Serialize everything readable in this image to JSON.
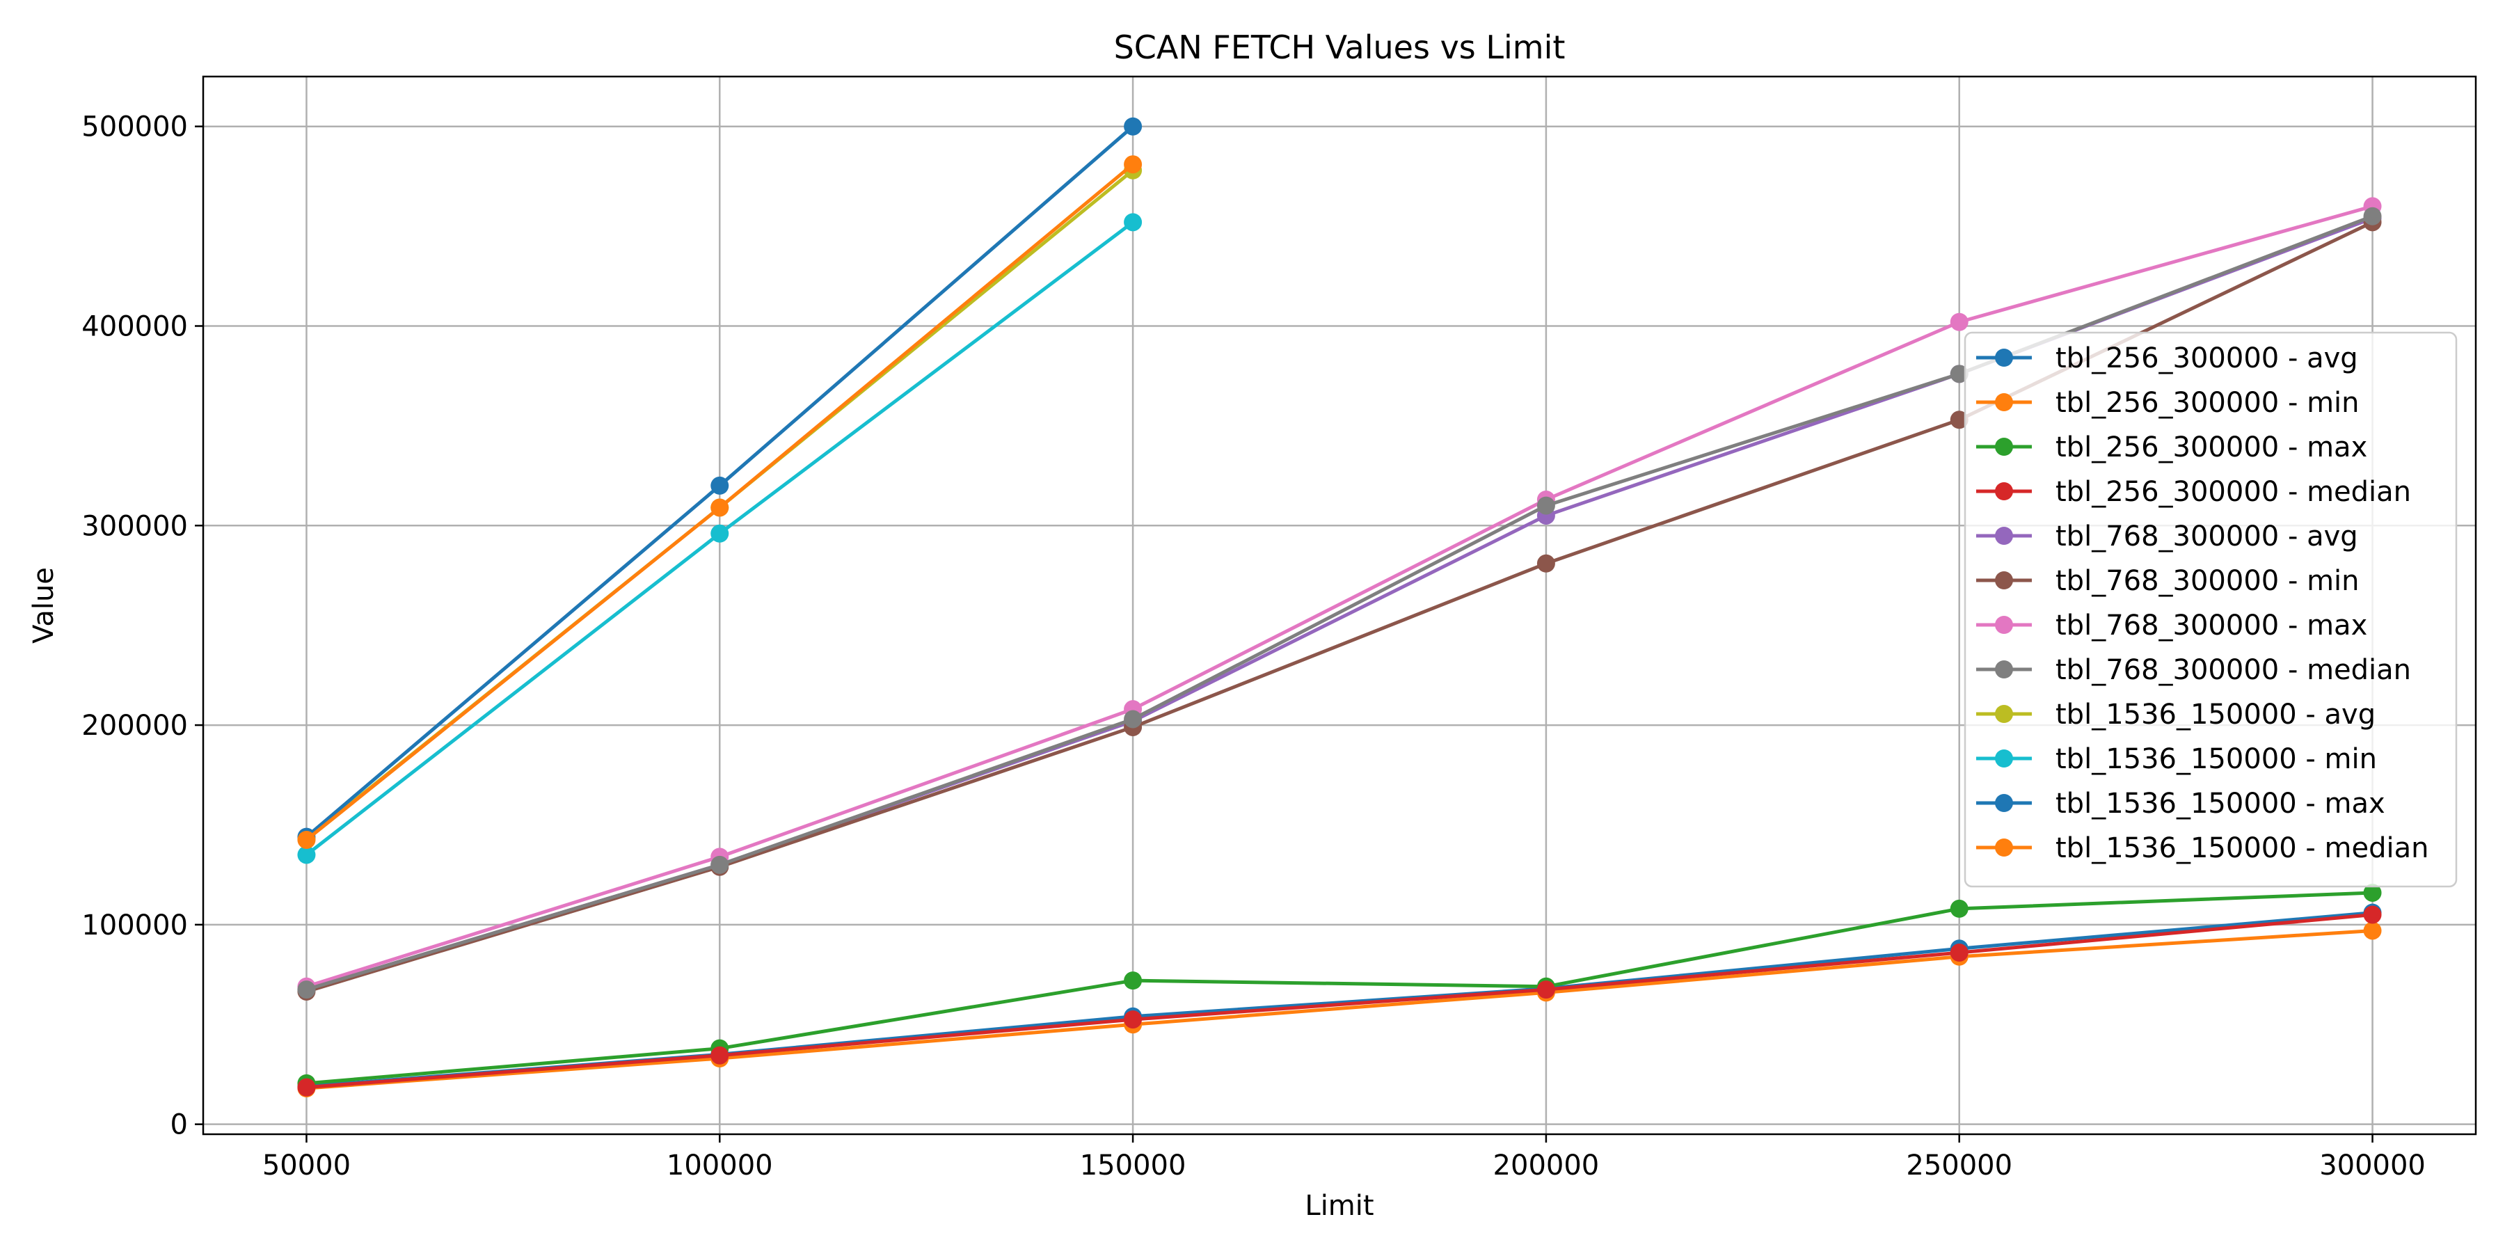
{
  "chart_data": {
    "type": "line",
    "title": "SCAN FETCH Values vs Limit",
    "xlabel": "Limit",
    "ylabel": "Value",
    "xlim": [
      37500,
      312500
    ],
    "ylim": [
      -5000,
      525000
    ],
    "xticks": [
      50000,
      100000,
      150000,
      200000,
      250000,
      300000
    ],
    "yticks": [
      0,
      100000,
      200000,
      300000,
      400000,
      500000
    ],
    "grid": true,
    "legend_position": "right",
    "series": [
      {
        "name": "tbl_256_300000 - avg",
        "color": "#1f77b4",
        "x": [
          50000,
          100000,
          150000,
          200000,
          250000,
          300000
        ],
        "y": [
          19000,
          35000,
          54000,
          68000,
          88000,
          106000
        ]
      },
      {
        "name": "tbl_256_300000 - min",
        "color": "#ff7f0e",
        "x": [
          50000,
          100000,
          150000,
          200000,
          250000,
          300000
        ],
        "y": [
          18000,
          33000,
          50000,
          66000,
          84000,
          97000
        ]
      },
      {
        "name": "tbl_256_300000 - max",
        "color": "#2ca02c",
        "x": [
          50000,
          100000,
          150000,
          200000,
          250000,
          300000
        ],
        "y": [
          20500,
          38000,
          72000,
          69000,
          108000,
          116000
        ]
      },
      {
        "name": "tbl_256_300000 - median",
        "color": "#d62728",
        "x": [
          50000,
          100000,
          150000,
          200000,
          250000,
          300000
        ],
        "y": [
          18500,
          34500,
          52500,
          67500,
          86000,
          105000
        ]
      },
      {
        "name": "tbl_768_300000 - avg",
        "color": "#9467bd",
        "x": [
          50000,
          100000,
          150000,
          200000,
          250000,
          300000
        ],
        "y": [
          67500,
          130000,
          202000,
          305000,
          376000,
          454000
        ]
      },
      {
        "name": "tbl_768_300000 - min",
        "color": "#8c564b",
        "x": [
          50000,
          100000,
          150000,
          200000,
          250000,
          300000
        ],
        "y": [
          66500,
          129000,
          199000,
          281000,
          353000,
          452000
        ]
      },
      {
        "name": "tbl_768_300000 - max",
        "color": "#e377c2",
        "x": [
          50000,
          100000,
          150000,
          200000,
          250000,
          300000
        ],
        "y": [
          69000,
          134000,
          208000,
          313000,
          402000,
          460000
        ]
      },
      {
        "name": "tbl_768_300000 - median",
        "color": "#7f7f7f",
        "x": [
          50000,
          100000,
          150000,
          200000,
          250000,
          300000
        ],
        "y": [
          67500,
          130000,
          203000,
          310000,
          376000,
          455000
        ]
      },
      {
        "name": "tbl_1536_150000 - avg",
        "color": "#bcbd22",
        "x": [
          50000,
          100000,
          150000
        ],
        "y": [
          143000,
          309000,
          478000
        ]
      },
      {
        "name": "tbl_1536_150000 - min",
        "color": "#17becf",
        "x": [
          50000,
          100000,
          150000
        ],
        "y": [
          135000,
          296000,
          452000
        ]
      },
      {
        "name": "tbl_1536_150000 - max",
        "color": "#1f77b4",
        "x": [
          50000,
          100000,
          150000
        ],
        "y": [
          144000,
          320000,
          500000
        ]
      },
      {
        "name": "tbl_1536_150000 - median",
        "color": "#ff7f0e",
        "x": [
          50000,
          100000,
          150000
        ],
        "y": [
          142500,
          309000,
          481000
        ]
      }
    ]
  }
}
